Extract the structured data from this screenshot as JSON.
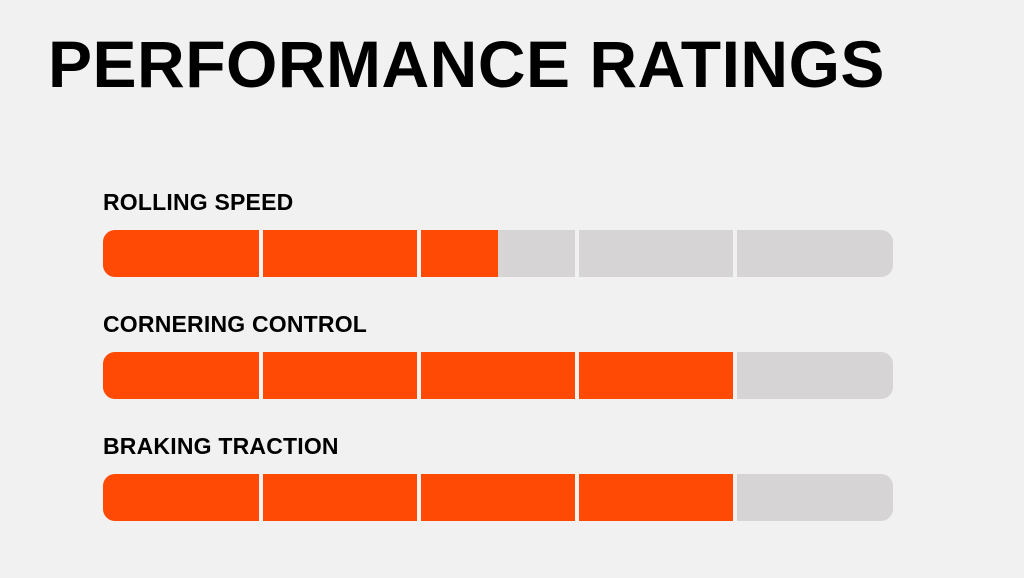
{
  "title": "PERFORMANCE RATINGS",
  "chart_data": {
    "type": "bar",
    "scale_max": 5,
    "categories": [
      "ROLLING SPEED",
      "CORNERING CONTROL",
      "BRAKING TRACTION"
    ],
    "values": [
      2.5,
      4,
      4
    ],
    "fill_color": "#ff4a05",
    "track_color": "#d6d4d4"
  }
}
